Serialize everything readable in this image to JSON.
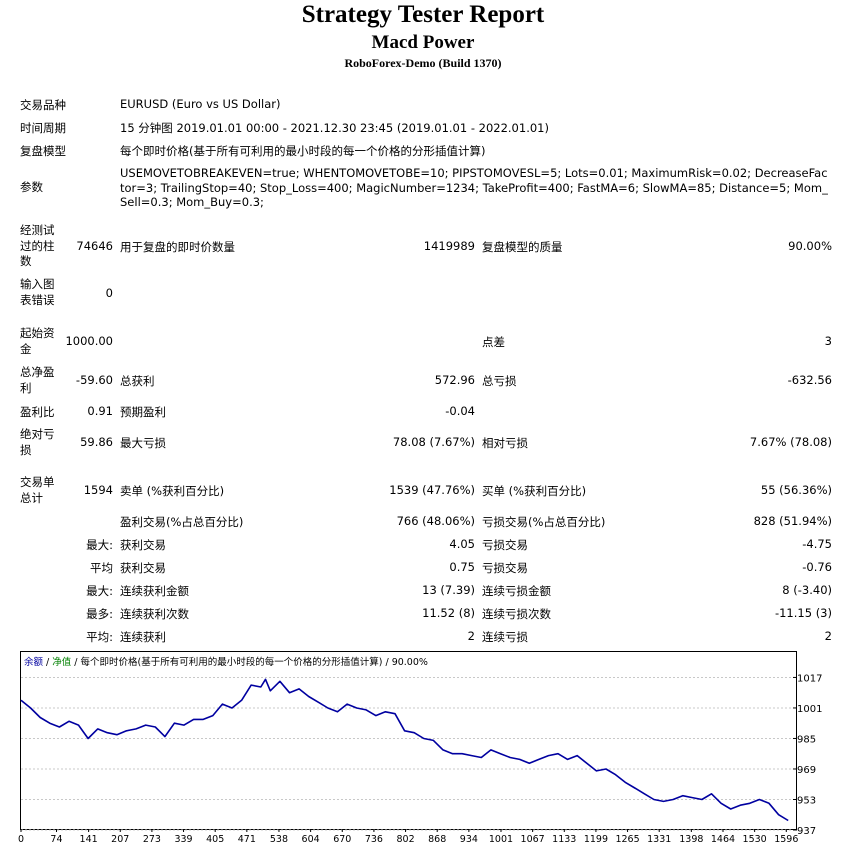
{
  "header": {
    "title": "Strategy Tester Report",
    "subtitle": "Macd Power",
    "build": "RoboForex-Demo (Build 1370)"
  },
  "settings": {
    "symbol_label": "交易品种",
    "symbol_value": "EURUSD (Euro vs US Dollar)",
    "period_label": "时间周期",
    "period_value": "15 分钟图 2019.01.01 00:00 - 2021.12.30 23:45 (2019.01.01 - 2022.01.01)",
    "model_label": "复盘模型",
    "model_value": "每个即时价格(基于所有可利用的最小时段的每一个价格的分形插值计算)",
    "params_label": "参数",
    "params_value": "USEMOVETOBREAKEVEN=true; WHENTOMOVETOBE=10; PIPSTOMOVESL=5; Lots=0.01; MaximumRisk=0.02; DecreaseFactor=3; TrailingStop=40; Stop_Loss=400; MagicNumber=1234; TakeProfit=400; FastMA=6; SlowMA=85; Distance=5; Mom_Sell=0.3; Mom_Buy=0.3;"
  },
  "stats": {
    "bars_label": "经测试过的柱数",
    "bars_value": "74646",
    "ticks_label": "用于复盘的即时价数量",
    "ticks_value": "1419989",
    "quality_label": "复盘模型的质量",
    "quality_value": "90.00%",
    "mismatch_label": "输入图表错误",
    "mismatch_value": "0",
    "deposit_label": "起始资金",
    "deposit_value": "1000.00",
    "spread_label": "点差",
    "spread_value": "3",
    "net_label": "总净盈利",
    "net_value": "-59.60",
    "gross_profit_label": "总获利",
    "gross_profit_value": "572.96",
    "gross_loss_label": "总亏损",
    "gross_loss_value": "-632.56",
    "pf_label": "盈利比",
    "pf_value": "0.91",
    "payoff_label": "预期盈利",
    "payoff_value": "-0.04",
    "abs_dd_label": "绝对亏损",
    "abs_dd_value": "59.86",
    "max_dd_label": "最大亏损",
    "max_dd_value": "78.08 (7.67%)",
    "rel_dd_label": "相对亏损",
    "rel_dd_value": "7.67% (78.08)",
    "trades_label": "交易单总计",
    "trades_value": "1594",
    "short_label": "卖单 (%获利百分比)",
    "short_value": "1539 (47.76%)",
    "long_label": "买单 (%获利百分比)",
    "long_value": "55 (56.36%)",
    "win_label": "盈利交易(%占总百分比)",
    "win_value": "766 (48.06%)",
    "lossn_label": "亏损交易(%占总百分比)",
    "lossn_value": "828 (51.94%)",
    "largest_prefix": "最大:",
    "largest_win_label": "获利交易",
    "largest_win_value": "4.05",
    "largest_loss_label": "亏损交易",
    "largest_loss_value": "-4.75",
    "avg_prefix": "平均",
    "avg_win_label": "获利交易",
    "avg_win_value": "0.75",
    "avg_loss_label": "亏损交易",
    "avg_loss_value": "-0.76",
    "max_prefix": "最大:",
    "consec_win_money_label": "连续获利金额",
    "consec_win_money_value": "13 (7.39)",
    "consec_loss_money_label": "连续亏损金额",
    "consec_loss_money_value": "8 (-3.40)",
    "most_prefix": "最多:",
    "consec_win_count_label": "连续获利次数",
    "consec_win_count_value": "11.52 (8)",
    "consec_loss_count_label": "连续亏损次数",
    "consec_loss_count_value": "-11.15 (3)",
    "avgc_prefix": "平均:",
    "avg_consec_win_label": "连续获利",
    "avg_consec_win_value": "2",
    "avg_consec_loss_label": "连续亏损",
    "avg_consec_loss_value": "2"
  },
  "chart_header": {
    "balance": "余额",
    "sep1": " / ",
    "equity": "净值",
    "sep2": " / ",
    "model": "每个即时价格(基于所有可利用的最小时段的每一个价格的分形插值计算)",
    "sep3": " / ",
    "quality": "90.00%"
  },
  "chart_data": {
    "type": "line",
    "xlim": [
      0,
      1610
    ],
    "ylim": [
      937,
      1023
    ],
    "x_ticks": [
      "0",
      "74",
      "141",
      "207",
      "273",
      "339",
      "405",
      "471",
      "538",
      "604",
      "670",
      "736",
      "802",
      "868",
      "934",
      "1001",
      "1067",
      "1133",
      "1199",
      "1265",
      "1331",
      "1398",
      "1464",
      "1530",
      "1596"
    ],
    "y_ticks": [
      "1017",
      "1001",
      "985",
      "969",
      "953",
      "937"
    ],
    "line_color": "#0000a0",
    "series": [
      {
        "x": [
          0,
          20,
          40,
          60,
          80,
          100,
          120,
          140,
          160,
          180,
          200,
          220,
          240,
          260,
          280,
          300,
          320,
          340,
          360,
          380,
          400,
          420,
          440,
          460,
          480,
          500,
          510,
          520,
          540,
          560,
          580,
          600,
          620,
          640,
          660,
          680,
          700,
          720,
          740,
          760,
          780,
          800,
          820,
          840,
          860,
          880,
          900,
          920,
          940,
          960,
          980,
          1000,
          1020,
          1040,
          1060,
          1080,
          1100,
          1120,
          1140,
          1160,
          1180,
          1200,
          1220,
          1240,
          1260,
          1280,
          1300,
          1320,
          1340,
          1360,
          1380,
          1400,
          1420,
          1440,
          1460,
          1480,
          1500,
          1520,
          1540,
          1560,
          1580,
          1600
        ],
        "y": [
          1005,
          1001,
          996,
          993,
          991,
          994,
          992,
          985,
          990,
          988,
          987,
          989,
          990,
          992,
          991,
          986,
          993,
          992,
          995,
          995,
          997,
          1003,
          1001,
          1005,
          1013,
          1012,
          1016,
          1010,
          1015,
          1009,
          1011,
          1007,
          1004,
          1001,
          999,
          1003,
          1001,
          1000,
          997,
          999,
          998,
          989,
          988,
          985,
          984,
          979,
          977,
          977,
          976,
          975,
          979,
          977,
          975,
          974,
          972,
          974,
          976,
          977,
          974,
          976,
          972,
          968,
          969,
          966,
          962,
          959,
          956,
          953,
          952,
          953,
          955,
          954,
          953,
          956,
          951,
          948,
          950,
          951,
          953,
          951,
          945,
          942
        ]
      }
    ]
  }
}
